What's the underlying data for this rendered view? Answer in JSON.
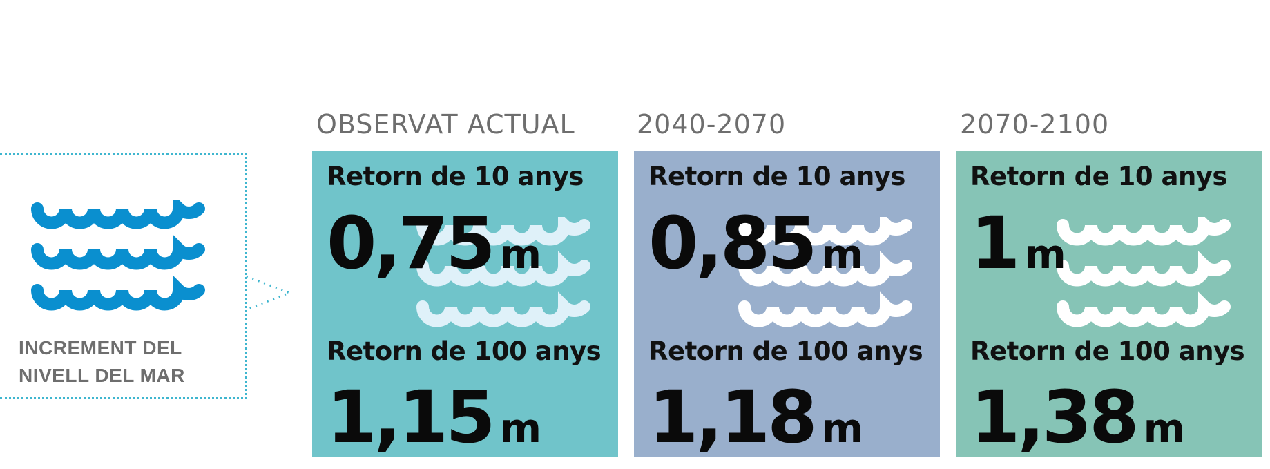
{
  "legend": {
    "icon": "sea-waves-icon",
    "label_line1": "INCREMENT DEL",
    "label_line2": "NIVELL DEL MAR"
  },
  "colors": {
    "legend_icon": "#0a8fcf",
    "legend_border": "#3fb6cf",
    "panel_observed": "#70c4ca",
    "panel_2040_2070": "#99afcc",
    "panel_2070_2100": "#86c4b6",
    "waves_observed": "#dff1f9",
    "waves_future": "#ffffff"
  },
  "panels": [
    {
      "period": "OBSERVAT ACTUAL",
      "return10_label": "Retorn de 10 anys",
      "return10_value": "0,75",
      "return100_label": "Retorn de 100 anys",
      "return100_value": "1,15",
      "unit": "m"
    },
    {
      "period": "2040-2070",
      "return10_label": "Retorn de 10 anys",
      "return10_value": "0,85",
      "return100_label": "Retorn de 100 anys",
      "return100_value": "1,18",
      "unit": "m"
    },
    {
      "period": "2070-2100",
      "return10_label": "Retorn de 10 anys",
      "return10_value": "1",
      "return100_label": "Retorn de 100 anys",
      "return100_value": "1,38",
      "unit": "m"
    }
  ]
}
